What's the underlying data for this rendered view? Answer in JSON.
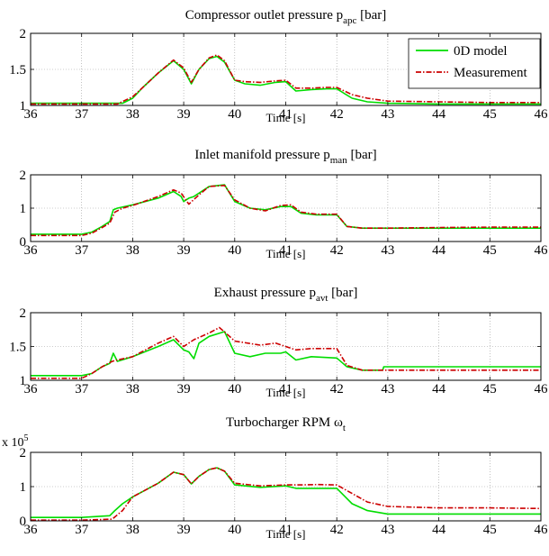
{
  "figure": {
    "legend": {
      "labels": [
        "0D model",
        "Measurement"
      ],
      "colors": [
        "#00dd00",
        "#cc0000"
      ]
    }
  },
  "chart_data": [
    {
      "type": "line",
      "title_main": "Compressor outlet pressure p",
      "title_sub": "apc",
      "title_unit": "[bar]",
      "xlabel": "Time [s]",
      "xlim": [
        36,
        46
      ],
      "ylim": [
        1,
        2
      ],
      "xticks": [
        "36",
        "37",
        "38",
        "39",
        "40",
        "41",
        "42",
        "43",
        "44",
        "45",
        "46"
      ],
      "yticks": [
        "1",
        "1.5",
        "2"
      ],
      "grid": true,
      "legend": "top-right",
      "series": [
        {
          "name": "0D model",
          "color": "#00dd00",
          "style": "solid",
          "x": [
            36,
            37,
            37.8,
            38.0,
            38.2,
            38.5,
            38.8,
            39.0,
            39.15,
            39.3,
            39.5,
            39.65,
            39.8,
            40.0,
            40.2,
            40.5,
            40.8,
            41.0,
            41.2,
            41.5,
            41.8,
            42.0,
            42.3,
            42.6,
            43,
            44,
            45,
            46
          ],
          "y": [
            1.03,
            1.03,
            1.03,
            1.1,
            1.25,
            1.45,
            1.62,
            1.5,
            1.3,
            1.5,
            1.65,
            1.68,
            1.6,
            1.35,
            1.3,
            1.28,
            1.32,
            1.33,
            1.2,
            1.22,
            1.23,
            1.23,
            1.1,
            1.05,
            1.03,
            1.02,
            1.02,
            1.02
          ]
        },
        {
          "name": "Measurement",
          "color": "#cc0000",
          "style": "dashdot",
          "x": [
            36,
            37,
            37.7,
            38.0,
            38.2,
            38.5,
            38.8,
            39.0,
            39.15,
            39.3,
            39.5,
            39.65,
            39.8,
            40.0,
            40.2,
            40.5,
            40.8,
            41.0,
            41.2,
            41.5,
            41.8,
            42.0,
            42.3,
            42.6,
            43,
            44,
            45,
            46
          ],
          "y": [
            1.02,
            1.02,
            1.02,
            1.12,
            1.25,
            1.45,
            1.63,
            1.52,
            1.32,
            1.5,
            1.66,
            1.7,
            1.62,
            1.35,
            1.33,
            1.32,
            1.34,
            1.35,
            1.24,
            1.24,
            1.25,
            1.25,
            1.15,
            1.1,
            1.06,
            1.05,
            1.04,
            1.04
          ]
        }
      ]
    },
    {
      "type": "line",
      "title_main": "Inlet manifold pressure p",
      "title_sub": "man",
      "title_unit": "[bar]",
      "xlabel": "Time [s]",
      "xlim": [
        36,
        46
      ],
      "ylim": [
        0,
        2
      ],
      "xticks": [
        "36",
        "37",
        "38",
        "39",
        "40",
        "41",
        "42",
        "43",
        "44",
        "45",
        "46"
      ],
      "yticks": [
        "0",
        "1",
        "2"
      ],
      "grid": true,
      "series": [
        {
          "name": "0D model",
          "color": "#00dd00",
          "style": "solid",
          "x": [
            36,
            37,
            37.2,
            37.4,
            37.55,
            37.62,
            37.7,
            38.0,
            38.5,
            38.8,
            38.95,
            39.0,
            39.1,
            39.2,
            39.5,
            39.8,
            40.0,
            40.3,
            40.6,
            40.9,
            41.1,
            41.3,
            41.6,
            42.0,
            42.2,
            42.5,
            43,
            44,
            45,
            46
          ],
          "y": [
            0.22,
            0.22,
            0.28,
            0.45,
            0.6,
            0.95,
            1.0,
            1.1,
            1.3,
            1.5,
            1.35,
            1.2,
            1.3,
            1.35,
            1.65,
            1.7,
            1.2,
            1.0,
            0.95,
            1.05,
            1.05,
            0.85,
            0.8,
            0.8,
            0.45,
            0.4,
            0.4,
            0.4,
            0.4,
            0.4
          ]
        },
        {
          "name": "Measurement",
          "color": "#cc0000",
          "style": "dashdot",
          "x": [
            36,
            37,
            37.2,
            37.4,
            37.55,
            37.65,
            37.8,
            38.0,
            38.5,
            38.8,
            38.95,
            39.1,
            39.3,
            39.5,
            39.8,
            40.0,
            40.3,
            40.6,
            40.9,
            41.1,
            41.3,
            41.6,
            42.0,
            42.2,
            42.5,
            43,
            44,
            45,
            46
          ],
          "y": [
            0.18,
            0.18,
            0.25,
            0.42,
            0.55,
            0.88,
            1.0,
            1.08,
            1.35,
            1.55,
            1.45,
            1.12,
            1.4,
            1.65,
            1.68,
            1.25,
            1.0,
            0.92,
            1.08,
            1.1,
            0.88,
            0.82,
            0.82,
            0.45,
            0.4,
            0.4,
            0.42,
            0.43,
            0.43
          ]
        }
      ]
    },
    {
      "type": "line",
      "title_main": "Exhaust pressure p",
      "title_sub": "avt",
      "title_unit": "[bar]",
      "xlabel": "Time [s]",
      "xlim": [
        36,
        46
      ],
      "ylim": [
        1,
        2
      ],
      "xticks": [
        "36",
        "37",
        "38",
        "39",
        "40",
        "41",
        "42",
        "43",
        "44",
        "45",
        "46"
      ],
      "yticks": [
        "1",
        "1.5",
        "2"
      ],
      "grid": true,
      "series": [
        {
          "name": "0D model",
          "color": "#00dd00",
          "style": "solid",
          "x": [
            36,
            37,
            37.2,
            37.4,
            37.55,
            37.62,
            37.7,
            38.0,
            38.5,
            38.8,
            39.0,
            39.1,
            39.2,
            39.3,
            39.5,
            39.8,
            40.0,
            40.3,
            40.6,
            40.9,
            41.0,
            41.2,
            41.5,
            42.0,
            42.2,
            42.5,
            42.9,
            42.92,
            44,
            45,
            46
          ],
          "y": [
            1.07,
            1.07,
            1.1,
            1.2,
            1.25,
            1.4,
            1.28,
            1.35,
            1.5,
            1.6,
            1.45,
            1.42,
            1.32,
            1.55,
            1.65,
            1.72,
            1.4,
            1.35,
            1.4,
            1.4,
            1.42,
            1.3,
            1.35,
            1.33,
            1.2,
            1.15,
            1.15,
            1.2,
            1.2,
            1.2,
            1.2
          ]
        },
        {
          "name": "Measurement",
          "color": "#cc0000",
          "style": "dashdot",
          "x": [
            36,
            37,
            37.2,
            37.4,
            37.6,
            37.7,
            38.0,
            38.5,
            38.8,
            39.0,
            39.2,
            39.5,
            39.7,
            39.9,
            40.0,
            40.5,
            40.8,
            41.2,
            41.5,
            42.0,
            42.2,
            42.5,
            43,
            44,
            45,
            46
          ],
          "y": [
            1.03,
            1.03,
            1.1,
            1.2,
            1.28,
            1.3,
            1.35,
            1.55,
            1.65,
            1.5,
            1.6,
            1.7,
            1.78,
            1.65,
            1.58,
            1.52,
            1.55,
            1.45,
            1.47,
            1.47,
            1.22,
            1.15,
            1.15,
            1.15,
            1.15,
            1.15
          ]
        }
      ]
    },
    {
      "type": "line",
      "title_main": "Turbocharger RPM ω",
      "title_sub": "t",
      "title_unit": "",
      "xlabel": "Time [s]",
      "xlim": [
        36,
        46
      ],
      "ylim": [
        0,
        2
      ],
      "multiplier": "x 10",
      "multiplier_exp": "5",
      "xticks": [
        "36",
        "37",
        "38",
        "39",
        "40",
        "41",
        "42",
        "43",
        "44",
        "45",
        "46"
      ],
      "yticks": [
        "0",
        "1",
        "2"
      ],
      "grid": true,
      "series": [
        {
          "name": "0D model",
          "color": "#00dd00",
          "style": "solid",
          "x": [
            36,
            37,
            37.55,
            37.65,
            37.8,
            38.0,
            38.5,
            38.8,
            39.0,
            39.15,
            39.3,
            39.5,
            39.65,
            39.8,
            40.0,
            40.5,
            41.0,
            41.2,
            41.5,
            42.0,
            42.3,
            42.6,
            43,
            44,
            45,
            46
          ],
          "y": [
            0.1,
            0.1,
            0.15,
            0.3,
            0.5,
            0.7,
            1.1,
            1.42,
            1.35,
            1.08,
            1.3,
            1.5,
            1.55,
            1.45,
            1.05,
            0.98,
            1.02,
            0.95,
            0.95,
            0.95,
            0.5,
            0.3,
            0.2,
            0.2,
            0.2,
            0.2
          ]
        },
        {
          "name": "Measurement",
          "color": "#cc0000",
          "style": "dashdot",
          "x": [
            36,
            37,
            37.6,
            37.8,
            38.0,
            38.5,
            38.8,
            39.0,
            39.15,
            39.3,
            39.5,
            39.65,
            39.8,
            40.0,
            40.5,
            41.0,
            41.3,
            41.6,
            42.0,
            42.3,
            42.6,
            43,
            44,
            45,
            46
          ],
          "y": [
            0.02,
            0.02,
            0.05,
            0.3,
            0.7,
            1.1,
            1.42,
            1.35,
            1.08,
            1.3,
            1.5,
            1.55,
            1.45,
            1.1,
            1.02,
            1.05,
            1.05,
            1.06,
            1.05,
            0.8,
            0.55,
            0.42,
            0.38,
            0.38,
            0.36
          ]
        }
      ]
    }
  ]
}
